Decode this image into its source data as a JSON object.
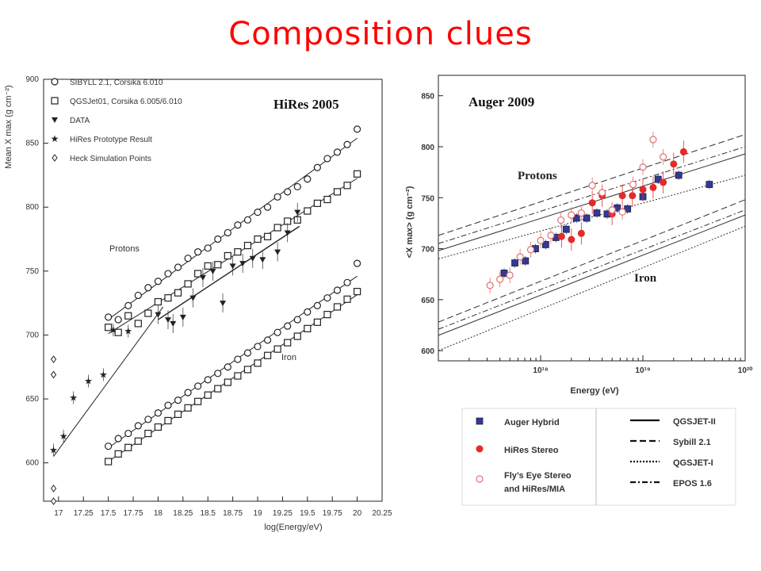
{
  "slide": {
    "title": "Composition clues"
  },
  "chart_data": [
    {
      "type": "scatter",
      "annotation": "HiRes 2005",
      "xlabel": "log(Energy/eV)",
      "ylabel": "Mean X max (g cm⁻²)",
      "xlim": [
        16.85,
        20.25
      ],
      "ylim": [
        570,
        900
      ],
      "xticks": [
        "17",
        "17.25",
        "17.5",
        "17.75",
        "18",
        "18.25",
        "18.5",
        "18.75",
        "19",
        "19.25",
        "19.5",
        "19.75",
        "20",
        "20.25"
      ],
      "yticks": [
        "600",
        "650",
        "700",
        "750",
        "800",
        "850",
        "900"
      ],
      "legend": [
        "SIBYLL 2.1, Corsika 6.010",
        "QGSJet01, Corsika 6.005/6.010",
        "DATA",
        "HiRes Prototype Result",
        "Heck Simulation Points"
      ],
      "text_labels": [
        "Protons",
        "Iron"
      ],
      "series": [
        {
          "name": "SIBYLL 2.1, Corsika 6.010",
          "marker": "circle",
          "x": [
            17.5,
            17.6,
            17.7,
            17.8,
            17.9,
            18.0,
            18.1,
            18.2,
            18.3,
            18.4,
            18.5,
            18.6,
            18.7,
            18.8,
            18.9,
            19.0,
            19.1,
            19.2,
            19.3,
            19.4,
            19.5,
            19.6,
            19.7,
            19.8,
            19.9,
            20.0
          ],
          "y": [
            714,
            712,
            723,
            731,
            737,
            742,
            748,
            753,
            760,
            765,
            768,
            775,
            780,
            786,
            790,
            796,
            800,
            808,
            812,
            816,
            822,
            831,
            838,
            843,
            849,
            861
          ]
        },
        {
          "name": "QGSJet01, Corsika 6.005/6.010",
          "marker": "square",
          "x": [
            17.5,
            17.6,
            17.7,
            17.8,
            17.9,
            18.0,
            18.1,
            18.2,
            18.3,
            18.4,
            18.5,
            18.6,
            18.7,
            18.8,
            18.9,
            19.0,
            19.1,
            19.2,
            19.3,
            19.4,
            19.5,
            19.6,
            19.7,
            19.8,
            19.9,
            20.0
          ],
          "y": [
            706,
            702,
            715,
            709,
            717,
            726,
            729,
            733,
            740,
            748,
            754,
            755,
            762,
            765,
            770,
            775,
            777,
            784,
            789,
            790,
            797,
            803,
            806,
            812,
            817,
            826
          ]
        },
        {
          "name": "Iron SIBYLL 2.1",
          "marker": "circle",
          "x": [
            17.5,
            17.6,
            17.7,
            17.8,
            17.9,
            18.0,
            18.1,
            18.2,
            18.3,
            18.4,
            18.5,
            18.6,
            18.7,
            18.8,
            18.9,
            19.0,
            19.1,
            19.2,
            19.3,
            19.4,
            19.5,
            19.6,
            19.7,
            19.8,
            19.9,
            20.0
          ],
          "y": [
            613,
            619,
            623,
            629,
            634,
            639,
            645,
            649,
            655,
            660,
            665,
            670,
            675,
            681,
            686,
            691,
            696,
            702,
            707,
            712,
            718,
            723,
            729,
            735,
            741,
            756
          ]
        },
        {
          "name": "Iron QGSJet01",
          "marker": "square",
          "x": [
            17.5,
            17.6,
            17.7,
            17.8,
            17.9,
            18.0,
            18.1,
            18.2,
            18.3,
            18.4,
            18.5,
            18.6,
            18.7,
            18.8,
            18.9,
            19.0,
            19.1,
            19.2,
            19.3,
            19.4,
            19.5,
            19.6,
            19.7,
            19.8,
            19.9,
            20.0
          ],
          "y": [
            601,
            607,
            612,
            617,
            623,
            628,
            633,
            638,
            643,
            648,
            653,
            658,
            663,
            668,
            673,
            678,
            684,
            689,
            694,
            699,
            705,
            710,
            716,
            722,
            728,
            734
          ]
        },
        {
          "name": "DATA",
          "marker": "triangle-down",
          "x": [
            18.0,
            18.1,
            18.15,
            18.25,
            18.35,
            18.45,
            18.55,
            18.65,
            18.75,
            18.85,
            18.95,
            19.05,
            19.2,
            19.3,
            19.4
          ],
          "y": [
            716,
            712,
            709,
            714,
            729,
            745,
            750,
            725,
            754,
            756,
            760,
            759,
            765,
            780,
            796
          ]
        },
        {
          "name": "HiRes Prototype Result",
          "marker": "star",
          "x": [
            16.95,
            17.05,
            17.15,
            17.3,
            17.45,
            17.55,
            17.7
          ],
          "y": [
            610,
            621,
            651,
            664,
            669,
            704,
            703
          ]
        },
        {
          "name": "Heck Simulation Points",
          "marker": "diamond",
          "x": [
            16.95,
            16.95,
            16.95,
            16.95
          ],
          "y": [
            681,
            669,
            580,
            570
          ]
        }
      ]
    },
    {
      "type": "scatter",
      "annotation": "Auger 2009",
      "xlabel": "Energy (eV)",
      "ylabel": "<X max> (g cm⁻²)",
      "xscale": "log",
      "xlim": [
        1e+17,
        1e+20
      ],
      "ylim": [
        590,
        870
      ],
      "xticks": [
        "10¹⁸",
        "10¹⁹",
        "10²⁰"
      ],
      "yticks": [
        "600",
        "650",
        "700",
        "750",
        "800",
        "850"
      ],
      "text_labels": [
        "Protons",
        "Iron"
      ],
      "legend": [
        "Auger Hybrid",
        "HiRes Stereo",
        "Fly’s Eye Stereo and HiRes/MIA",
        "QGSJET-II",
        "Sybill 2.1",
        "QGSJET-I",
        "EPOS 1.6"
      ],
      "series": [
        {
          "name": "Auger Hybrid",
          "marker": "square",
          "x": [
            4.4e+17,
            5.6e+17,
            7.1e+17,
            8.9e+17,
            1.12e+18,
            1.41e+18,
            1.78e+18,
            2.24e+18,
            2.82e+18,
            3.55e+18,
            4.47e+18,
            5.62e+18,
            7.08e+18,
            1e+19,
            1.41e+19,
            2.24e+19,
            4.47e+19
          ],
          "y": [
            676,
            686,
            688,
            700,
            704,
            711,
            719,
            730,
            730,
            735,
            734,
            740,
            739,
            751,
            768,
            772,
            763
          ]
        },
        {
          "name": "HiRes Stereo",
          "marker": "dot",
          "x": [
            1.6e+18,
            2e+18,
            2.5e+18,
            3.2e+18,
            4e+18,
            5e+18,
            6.3e+18,
            7.9e+18,
            1e+19,
            1.26e+19,
            1.58e+19,
            2e+19,
            2.5e+19
          ],
          "y": [
            712,
            709,
            715,
            745,
            752,
            734,
            752,
            752,
            758,
            760,
            765,
            783,
            795
          ]
        },
        {
          "name": "Fly’s Eye Stereo and HiRes/MIA",
          "marker": "open-circle",
          "x": [
            3.2e+17,
            4e+17,
            5e+17,
            6.3e+17,
            8e+17,
            1e+18,
            1.26e+18,
            1.58e+18,
            2e+18,
            2.5e+18,
            3.2e+18,
            4e+18,
            5e+18,
            6.3e+18,
            8e+18,
            1e+19,
            1.26e+19,
            1.58e+19
          ],
          "y": [
            664,
            670,
            674,
            692,
            699,
            708,
            713,
            728,
            733,
            735,
            762,
            755,
            738,
            736,
            763,
            780,
            807,
            790
          ]
        }
      ]
    }
  ]
}
